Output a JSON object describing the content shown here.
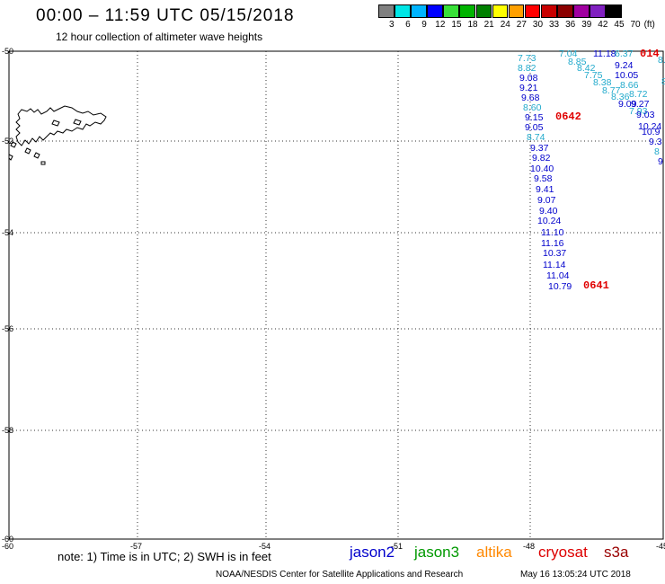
{
  "header": {
    "title": "00:00 – 11:59 UTC 05/15/2018",
    "subtitle": "12 hour collection of altimeter wave heights"
  },
  "legend": {
    "colors": [
      "#808080",
      "#00e6e6",
      "#00b4ff",
      "#0000ff",
      "#38e038",
      "#00b400",
      "#008000",
      "#ffff00",
      "#ffa000",
      "#ff0000",
      "#c80000",
      "#8b0000",
      "#a000a0",
      "#8020c0",
      "#000000"
    ],
    "labels": [
      "3",
      "6",
      "9",
      "12",
      "15",
      "18",
      "21",
      "24",
      "27",
      "30",
      "33",
      "36",
      "39",
      "42",
      "45",
      "70"
    ],
    "unit": "(ft)"
  },
  "axes": {
    "lat_labels": [
      "-50",
      "-52",
      "-54",
      "-56",
      "-58",
      "-60"
    ],
    "lon_labels": [
      "-60",
      "-57",
      "-54",
      "-51",
      "-48",
      "-45"
    ]
  },
  "waves": [
    {
      "v": "7.73",
      "c": "#22aacc"
    },
    {
      "v": "8.82",
      "c": "#22aacc"
    },
    {
      "v": "9.08",
      "c": "#0000cc"
    },
    {
      "v": "9.21",
      "c": "#0000cc"
    },
    {
      "v": "9.68",
      "c": "#0000cc"
    },
    {
      "v": "8.60",
      "c": "#22aacc"
    },
    {
      "v": "9.15",
      "c": "#0000cc"
    },
    {
      "v": "9.05",
      "c": "#0000cc"
    },
    {
      "v": "8.74",
      "c": "#22aacc"
    },
    {
      "v": "9.37",
      "c": "#0000cc"
    },
    {
      "v": "9.82",
      "c": "#0000cc"
    },
    {
      "v": "10.40",
      "c": "#0000cc"
    },
    {
      "v": "9.58",
      "c": "#0000cc"
    },
    {
      "v": "9.41",
      "c": "#0000cc"
    },
    {
      "v": "9.07",
      "c": "#0000cc"
    },
    {
      "v": "9.40",
      "c": "#0000cc"
    },
    {
      "v": "10.24",
      "c": "#0000cc"
    },
    {
      "v": "11.10",
      "c": "#0000cc"
    },
    {
      "v": "11.16",
      "c": "#0000cc"
    },
    {
      "v": "10.37",
      "c": "#0000cc"
    },
    {
      "v": "11.14",
      "c": "#0000cc"
    },
    {
      "v": "11.04",
      "c": "#0000cc"
    },
    {
      "v": "10.79",
      "c": "#0000cc"
    },
    {
      "v": "7.04",
      "c": "#22aacc"
    },
    {
      "v": "11.18",
      "c": "#0000cc"
    },
    {
      "v": "6.37",
      "c": "#22aacc"
    },
    {
      "v": "8.85",
      "c": "#22aacc"
    },
    {
      "v": "8.42",
      "c": "#22aacc"
    },
    {
      "v": "9.24",
      "c": "#0000cc"
    },
    {
      "v": "7.75",
      "c": "#22aacc"
    },
    {
      "v": "10.05",
      "c": "#0000cc"
    },
    {
      "v": "8.38",
      "c": "#22aacc"
    },
    {
      "v": "8.66",
      "c": "#22aacc"
    },
    {
      "v": "8.77",
      "c": "#22aacc"
    },
    {
      "v": "8.72",
      "c": "#22aacc"
    },
    {
      "v": "8.36",
      "c": "#22aacc"
    },
    {
      "v": "9.09",
      "c": "#0000cc"
    },
    {
      "v": "9.27",
      "c": "#0000cc"
    },
    {
      "v": "7.93",
      "c": "#22aacc"
    },
    {
      "v": "9.03",
      "c": "#0000cc"
    },
    {
      "v": "10.24",
      "c": "#0000cc"
    },
    {
      "v": "10.9",
      "c": "#0000cc"
    },
    {
      "v": "9.3",
      "c": "#0000cc"
    },
    {
      "v": "8",
      "c": "#22aacc"
    },
    {
      "v": "9",
      "c": "#0000cc"
    },
    {
      "v": "8.",
      "c": "#22aacc"
    },
    {
      "v": "8.",
      "c": "#22aacc"
    }
  ],
  "pass_labels": [
    "0642",
    "0641",
    "014"
  ],
  "footer": {
    "note": "note: 1) Time is in UTC; 2) SWH is in feet",
    "satellites": [
      {
        "name": "jason2",
        "color": "#0000cc"
      },
      {
        "name": "jason3",
        "color": "#009900"
      },
      {
        "name": "altika",
        "color": "#ff8800"
      },
      {
        "name": "cryosat",
        "color": "#dd0000"
      },
      {
        "name": "s3a",
        "color": "#990000"
      }
    ],
    "credit": "NOAA/NESDIS Center for Satellite Applications and Research",
    "timestamp": "May 16 13:05:24 UTC 2018"
  }
}
